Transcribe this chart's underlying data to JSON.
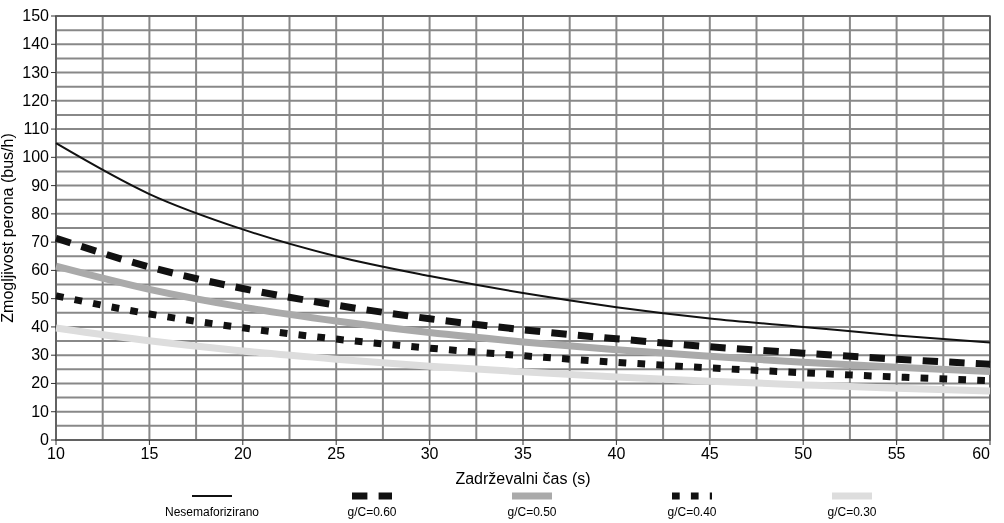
{
  "chart_data": {
    "type": "line",
    "xlabel": "Zadrževalni čas (s)",
    "ylabel": "Zmogljivost perona (bus/h)",
    "x": [
      10,
      15,
      20,
      25,
      30,
      35,
      40,
      45,
      50,
      55,
      60
    ],
    "xlim": [
      10,
      60
    ],
    "xticks": [
      10,
      15,
      20,
      25,
      30,
      35,
      40,
      45,
      50,
      55,
      60
    ],
    "ylim": [
      0,
      150
    ],
    "yticks": [
      0,
      10,
      20,
      30,
      40,
      50,
      60,
      70,
      80,
      90,
      100,
      110,
      120,
      130,
      140,
      150
    ],
    "grid": true,
    "legend": "bottom",
    "series": [
      {
        "name": "Nesemaforizirano",
        "color": "#111111",
        "line_style": "solid",
        "values": [
          105,
          87,
          74.5,
          65,
          58,
          52,
          47,
          43,
          40,
          37,
          34.5
        ]
      },
      {
        "name": "g/C=0.60",
        "color": "#111111",
        "line_style": "dashed",
        "values": [
          71.4,
          61.2,
          53.6,
          47.7,
          42.9,
          39,
          35.8,
          33,
          30.7,
          28.6,
          26.8
        ]
      },
      {
        "name": "g/C=0.50",
        "color": "#aaaaaa",
        "line_style": "solid",
        "values": [
          61.5,
          53.3,
          47,
          42.1,
          38,
          34.7,
          31.9,
          29.6,
          27.5,
          25.7,
          24.2
        ]
      },
      {
        "name": "g/C=0.40",
        "color": "#111111",
        "line_style": "dotted",
        "values": [
          51,
          44.6,
          39.7,
          35.7,
          32.5,
          29.8,
          27.5,
          25.5,
          23.8,
          22.3,
          21
        ]
      },
      {
        "name": "g/C=0.30",
        "color": "#dddddd",
        "line_style": "solid",
        "values": [
          39.6,
          35.1,
          31.5,
          28.6,
          26.1,
          24.1,
          22.3,
          20.8,
          19.5,
          18.3,
          17.3
        ]
      }
    ]
  }
}
